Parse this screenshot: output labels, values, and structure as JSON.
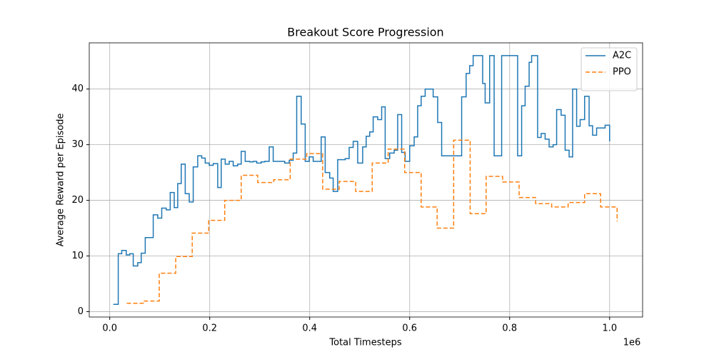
{
  "chart_data": {
    "type": "line",
    "drawstyle": "steps-post",
    "title": "Breakout Score Progression",
    "x_label": "Total Timesteps",
    "y_label": "Average Reward per Episode",
    "x_offset_label": "1e6",
    "xlim": [
      -0.041,
      1.066
    ],
    "ylim": [
      -0.97,
      48.3
    ],
    "xticks": [
      {
        "value": 0,
        "label": "0.0"
      },
      0.2,
      0.4,
      0.6,
      0.8,
      {
        "value": 1,
        "label": "1.0"
      }
    ],
    "yticks": [
      0,
      10,
      20,
      30,
      40
    ],
    "grid": true,
    "legend": "upper right",
    "series": [
      {
        "name": "A2C",
        "color": "#1f77b4",
        "dash": "solid",
        "x": [
          0.007,
          0.017,
          0.024,
          0.033,
          0.04,
          0.047,
          0.056,
          0.063,
          0.071,
          0.087,
          0.096,
          0.104,
          0.113,
          0.121,
          0.129,
          0.136,
          0.143,
          0.151,
          0.159,
          0.167,
          0.176,
          0.184,
          0.191,
          0.199,
          0.207,
          0.216,
          0.223,
          0.231,
          0.239,
          0.247,
          0.256,
          0.263,
          0.271,
          0.28,
          0.287,
          0.294,
          0.303,
          0.31,
          0.319,
          0.327,
          0.35,
          0.359,
          0.367,
          0.374,
          0.383,
          0.391,
          0.399,
          0.407,
          0.416,
          0.423,
          0.431,
          0.44,
          0.447,
          0.456,
          0.471,
          0.479,
          0.487,
          0.496,
          0.506,
          0.513,
          0.52,
          0.527,
          0.536,
          0.544,
          0.551,
          0.56,
          0.569,
          0.576,
          0.584,
          0.591,
          0.6,
          0.609,
          0.616,
          0.623,
          0.631,
          0.647,
          0.656,
          0.664,
          0.704,
          0.713,
          0.72,
          0.727,
          0.746,
          0.751,
          0.76,
          0.769,
          0.784,
          0.816,
          0.824,
          0.831,
          0.839,
          0.844,
          0.856,
          0.863,
          0.871,
          0.879,
          0.887,
          0.894,
          0.903,
          0.911,
          0.919,
          0.926,
          0.934,
          0.941,
          0.95,
          0.959,
          0.966,
          0.974,
          0.991,
          1.0
        ],
        "values": [
          1.3,
          10.4,
          11.0,
          10.2,
          10.4,
          8.2,
          8.8,
          10.5,
          13.3,
          17.4,
          16.8,
          18.6,
          18.3,
          21.4,
          18.7,
          23.0,
          26.5,
          21.2,
          19.7,
          26.0,
          28.0,
          27.6,
          26.7,
          26.3,
          26.6,
          22.3,
          27.4,
          26.5,
          27.0,
          26.2,
          26.5,
          28.8,
          27.0,
          26.9,
          27.0,
          26.7,
          26.9,
          27.0,
          29.6,
          27.0,
          26.7,
          27.2,
          28.5,
          38.7,
          33.7,
          27.0,
          27.8,
          27.0,
          27.0,
          31.4,
          25.0,
          24.0,
          21.6,
          27.3,
          27.5,
          29.5,
          30.6,
          26.7,
          29.6,
          31.5,
          32.3,
          35.0,
          34.5,
          36.8,
          27.5,
          28.5,
          29.0,
          35.4,
          28.6,
          27.0,
          29.8,
          31.4,
          37.0,
          38.7,
          40.0,
          38.6,
          34.0,
          28.0,
          38.6,
          42.8,
          44.2,
          46.0,
          41.0,
          37.5,
          46.0,
          28.0,
          46.0,
          28.0,
          37.0,
          40.5,
          44.8,
          46.0,
          31.3,
          32.0,
          31.0,
          29.6,
          30.0,
          36.3,
          35.3,
          29.0,
          27.8,
          40.0,
          33.3,
          34.5,
          38.7,
          33.4,
          31.7,
          33.0,
          33.5,
          30.6
        ]
      },
      {
        "name": "PPO",
        "color": "#ff7f0e",
        "dash": "dashed",
        "x": [
          0.034,
          0.067,
          0.099,
          0.132,
          0.165,
          0.198,
          0.23,
          0.263,
          0.296,
          0.328,
          0.361,
          0.394,
          0.426,
          0.459,
          0.492,
          0.525,
          0.557,
          0.59,
          0.623,
          0.655,
          0.688,
          0.721,
          0.753,
          0.786,
          0.819,
          0.852,
          0.884,
          0.917,
          0.95,
          0.982,
          1.015
        ],
        "values": [
          1.5,
          1.9,
          6.9,
          9.9,
          14.1,
          16.4,
          20.0,
          24.5,
          23.2,
          23.7,
          27.4,
          28.4,
          22.0,
          23.4,
          21.6,
          26.7,
          29.2,
          25.0,
          18.8,
          15.0,
          30.8,
          17.6,
          24.3,
          23.3,
          20.5,
          19.4,
          18.8,
          19.6,
          21.2,
          18.8,
          16.2
        ]
      }
    ]
  }
}
